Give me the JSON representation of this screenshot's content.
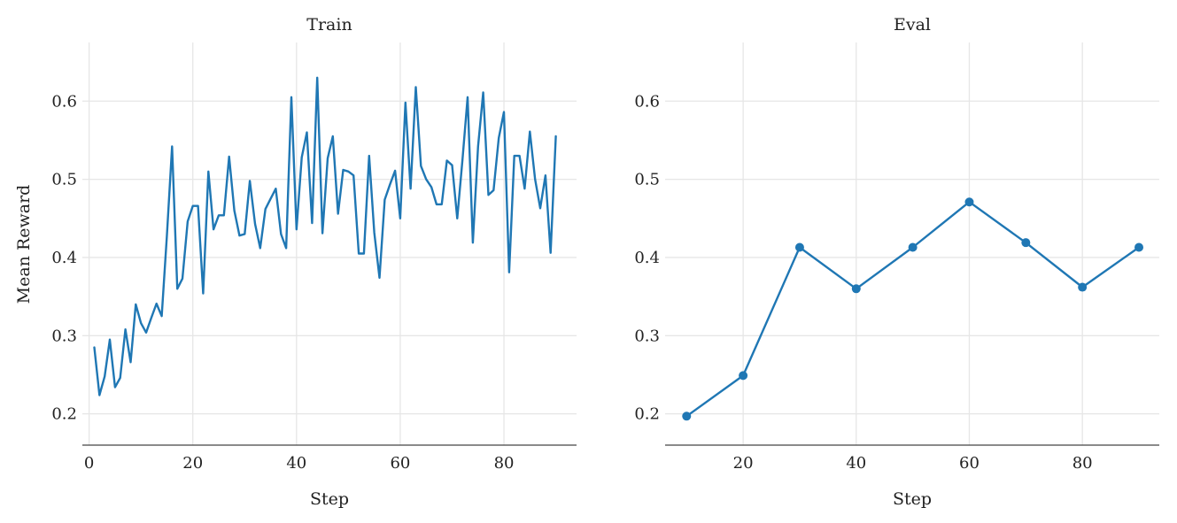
{
  "chart_data": [
    {
      "type": "line",
      "title": "Train",
      "xlabel": "Step",
      "ylabel": "Mean Reward",
      "xlim": [
        -1.3,
        94
      ],
      "ylim": [
        0.16,
        0.675
      ],
      "xticks": [
        0,
        20,
        40,
        60,
        80
      ],
      "yticks": [
        0.2,
        0.3,
        0.4,
        0.5,
        0.6
      ],
      "grid": true,
      "markers": false,
      "color": "#1f77b4",
      "series": [
        {
          "x": [
            1,
            2,
            3,
            4,
            5,
            6,
            7,
            8,
            9,
            10,
            11,
            12,
            13,
            14,
            15,
            16,
            17,
            18,
            19,
            20,
            21,
            22,
            23,
            24,
            25,
            26,
            27,
            28,
            29,
            30,
            31,
            32,
            33,
            34,
            35,
            36,
            37,
            38,
            39,
            40,
            41,
            42,
            43,
            44,
            45,
            46,
            47,
            48,
            49,
            50,
            51,
            52,
            53,
            54,
            55,
            56,
            57,
            58,
            59,
            60,
            61,
            62,
            63,
            64,
            65,
            66,
            67,
            68,
            69,
            70,
            71,
            72,
            73,
            74,
            75,
            76,
            77,
            78,
            79,
            80,
            81,
            82,
            83,
            84,
            85,
            86,
            87,
            88,
            89,
            90
          ],
          "y": [
            0.285,
            0.224,
            0.248,
            0.295,
            0.234,
            0.246,
            0.308,
            0.266,
            0.34,
            0.316,
            0.304,
            0.323,
            0.341,
            0.325,
            0.427,
            0.542,
            0.36,
            0.373,
            0.446,
            0.466,
            0.466,
            0.354,
            0.51,
            0.436,
            0.454,
            0.454,
            0.529,
            0.46,
            0.428,
            0.43,
            0.498,
            0.443,
            0.412,
            0.462,
            0.475,
            0.488,
            0.43,
            0.412,
            0.605,
            0.436,
            0.528,
            0.56,
            0.444,
            0.63,
            0.431,
            0.527,
            0.555,
            0.456,
            0.512,
            0.51,
            0.505,
            0.405,
            0.405,
            0.53,
            0.432,
            0.374,
            0.474,
            0.493,
            0.511,
            0.45,
            0.598,
            0.488,
            0.618,
            0.517,
            0.5,
            0.49,
            0.468,
            0.468,
            0.524,
            0.518,
            0.45,
            0.525,
            0.605,
            0.419,
            0.542,
            0.611,
            0.48,
            0.486,
            0.553,
            0.586,
            0.381,
            0.53,
            0.53,
            0.488,
            0.561,
            0.5,
            0.463,
            0.505,
            0.406,
            0.555
          ]
        }
      ]
    },
    {
      "type": "line",
      "title": "Eval",
      "xlabel": "Step",
      "ylabel": "",
      "xlim": [
        6.2,
        93.6
      ],
      "ylim": [
        0.16,
        0.675
      ],
      "xticks": [
        20,
        40,
        60,
        80
      ],
      "yticks": [
        0.2,
        0.3,
        0.4,
        0.5,
        0.6
      ],
      "grid": true,
      "markers": true,
      "color": "#1f77b4",
      "series": [
        {
          "x": [
            10,
            20,
            30,
            40,
            50,
            60,
            70,
            80,
            90
          ],
          "y": [
            0.197,
            0.249,
            0.413,
            0.36,
            0.413,
            0.471,
            0.419,
            0.362,
            0.413
          ]
        }
      ]
    }
  ]
}
